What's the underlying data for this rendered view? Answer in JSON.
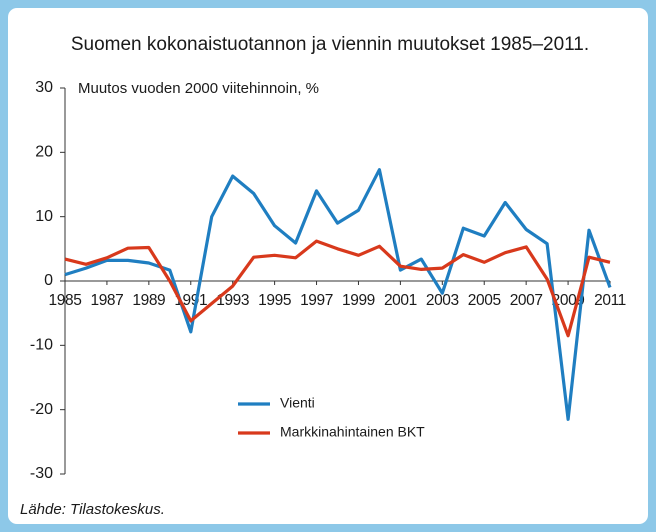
{
  "chart_data": {
    "type": "line",
    "title": "Suomen kokonaistuotannon ja viennin muutokset 1985–2011.",
    "ylabel": "Muutos vuoden 2000 viitehinnoin, %",
    "source": "Lähde: Tilastokeskus.",
    "x": [
      1985,
      1986,
      1987,
      1988,
      1989,
      1990,
      1991,
      1992,
      1993,
      1994,
      1995,
      1996,
      1997,
      1998,
      1999,
      2000,
      2001,
      2002,
      2003,
      2004,
      2005,
      2006,
      2007,
      2008,
      2009,
      2010,
      2011
    ],
    "series": [
      {
        "name": "Vienti",
        "color": "#1f7ec1",
        "values": [
          1.0,
          2.0,
          3.2,
          3.2,
          2.8,
          1.7,
          -7.9,
          10.0,
          16.3,
          13.6,
          8.6,
          5.9,
          14.0,
          9.0,
          11.0,
          17.3,
          1.7,
          3.4,
          -1.9,
          8.2,
          7.0,
          12.2,
          8.0,
          5.8,
          -21.5,
          7.9,
          -1.0
        ]
      },
      {
        "name": "Markkinahintainen BKT",
        "color": "#d8391c",
        "values": [
          3.4,
          2.6,
          3.6,
          5.1,
          5.2,
          0.0,
          -6.2,
          -3.5,
          -0.8,
          3.7,
          4.0,
          3.6,
          6.2,
          5.0,
          4.0,
          5.4,
          2.3,
          1.8,
          2.0,
          4.1,
          2.9,
          4.4,
          5.3,
          0.3,
          -8.5,
          3.7,
          2.9
        ]
      }
    ],
    "xlim": [
      1985,
      2011
    ],
    "xticks": [
      1985,
      1987,
      1989,
      1991,
      1993,
      1995,
      1997,
      1999,
      2001,
      2003,
      2005,
      2007,
      2009,
      2011
    ],
    "ylim": [
      -30,
      30
    ],
    "yticks": [
      -30,
      -20,
      -10,
      0,
      10,
      20,
      30
    ]
  }
}
